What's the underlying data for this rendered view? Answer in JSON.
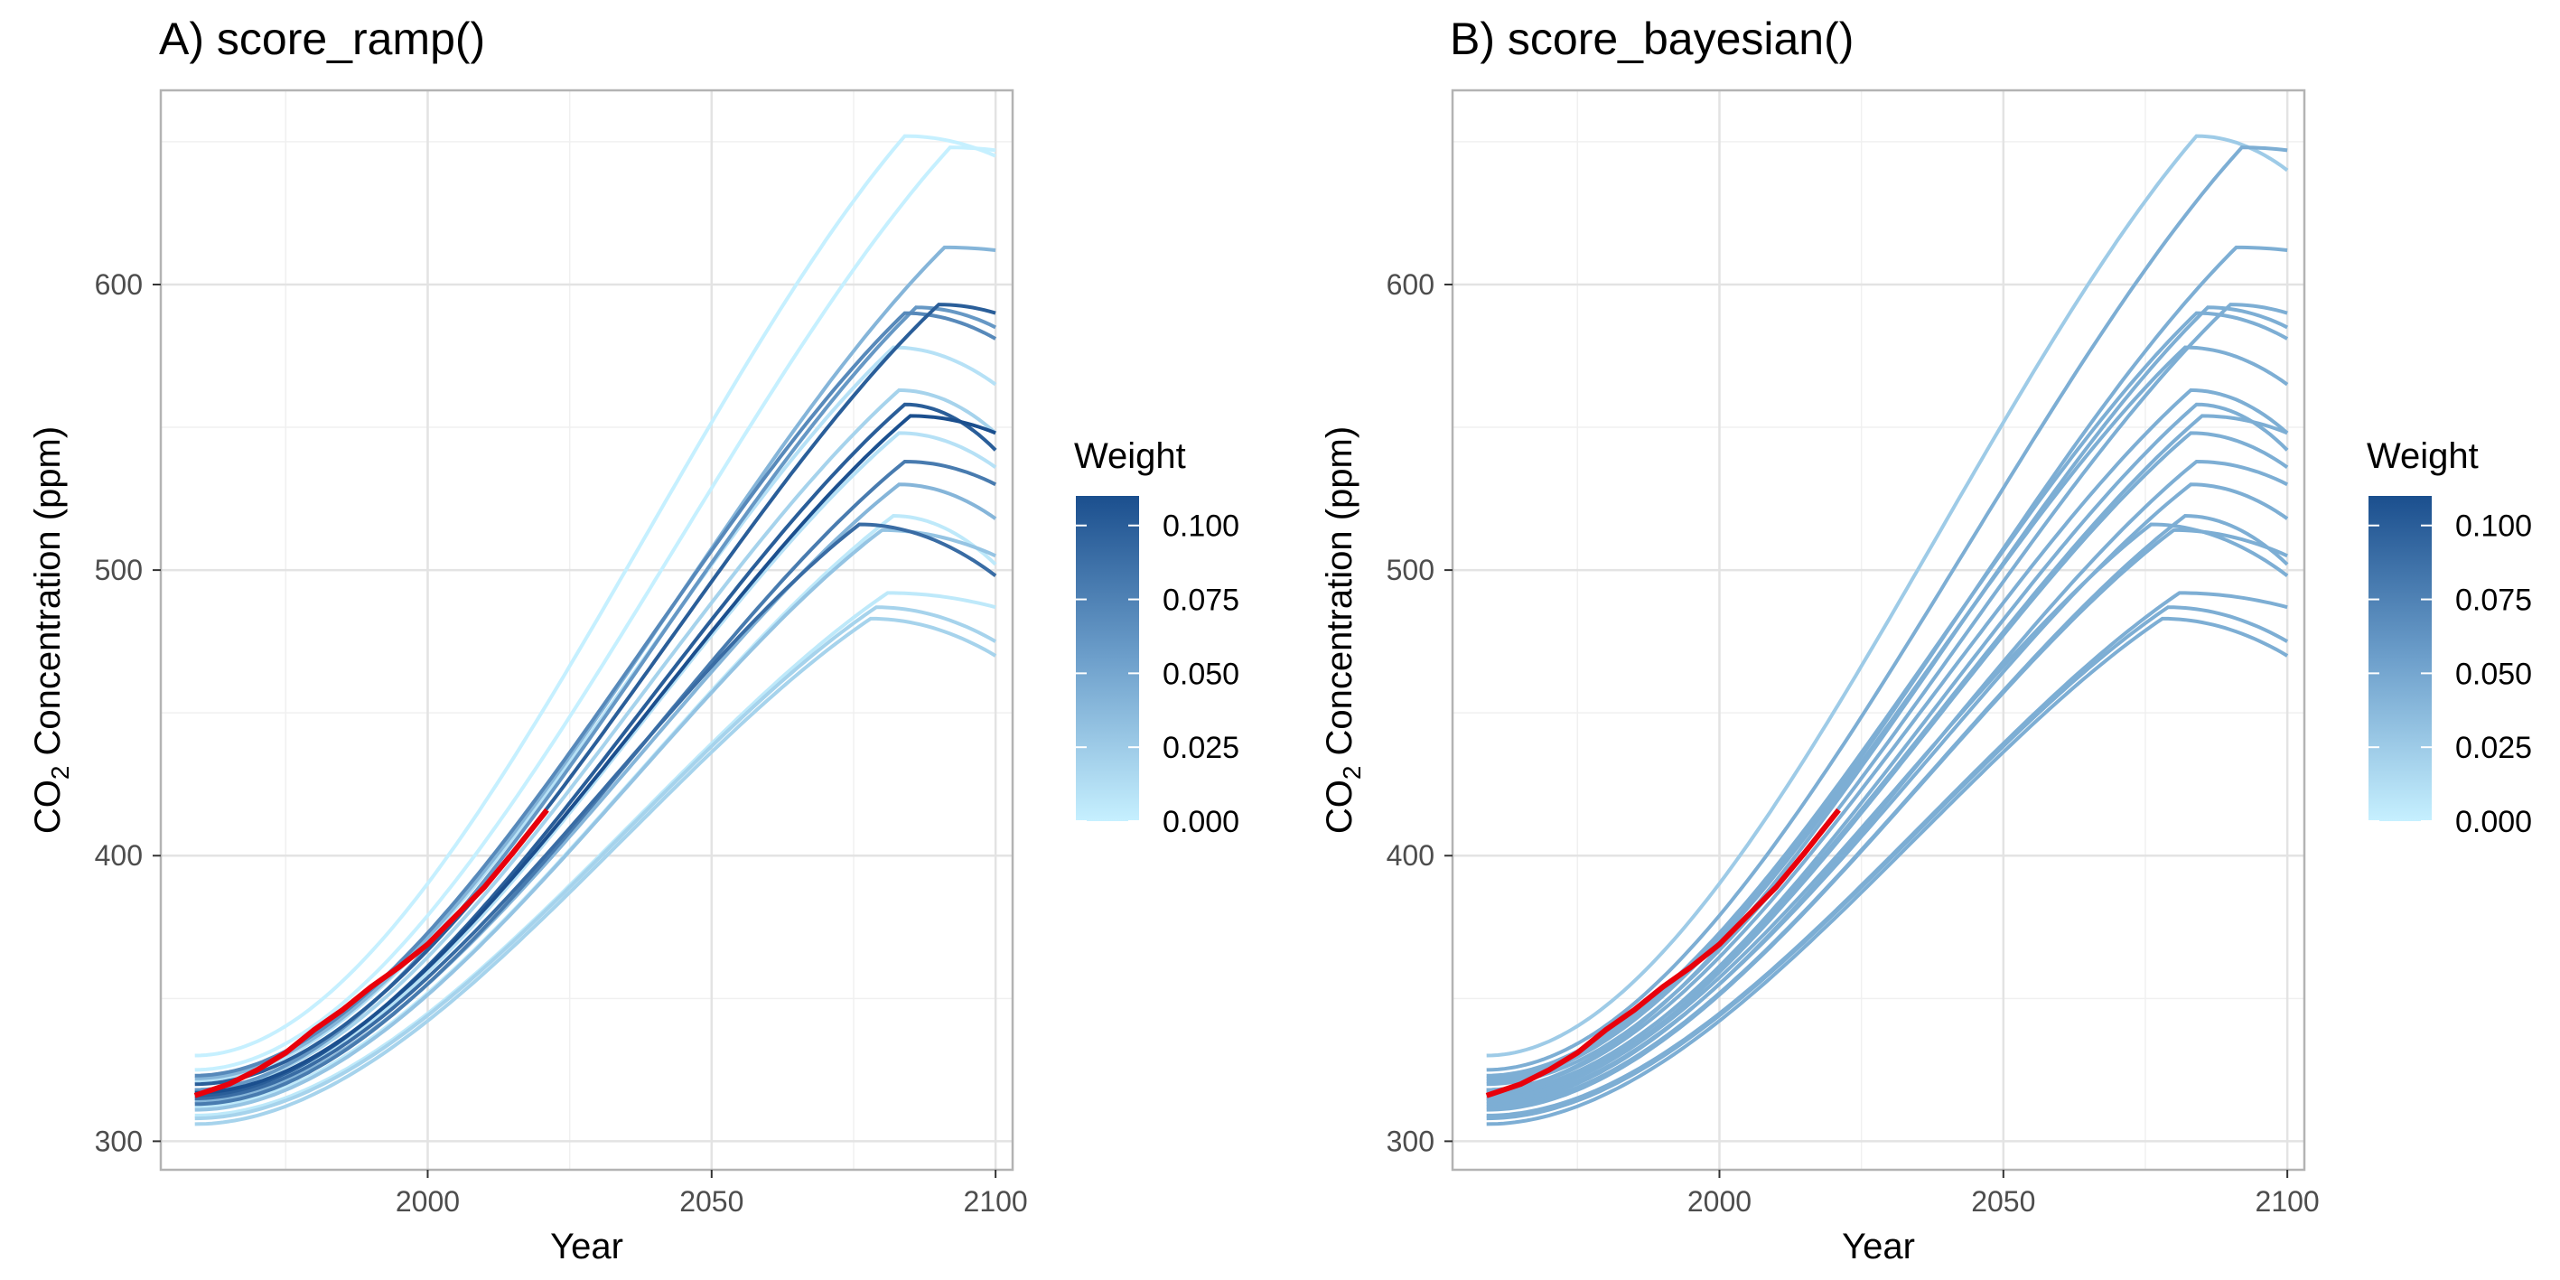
{
  "chart_data": [
    {
      "type": "line",
      "title": "A) score_ramp()",
      "xlabel": "Year",
      "ylabel": "CO2 Concentration (ppm)",
      "ylabel_parts": {
        "pre": "CO",
        "sub": "2",
        "post": " Concentration (ppm)"
      },
      "xlim": [
        1953,
        2103
      ],
      "ylim": [
        290,
        668
      ],
      "x_ticks": [
        2000,
        2050,
        2100
      ],
      "y_ticks": [
        300,
        400,
        500,
        600
      ],
      "grid": true,
      "legend": {
        "title": "Weight",
        "placement": "right",
        "min": 0,
        "max": 0.11,
        "ticks": [
          "0.100",
          "0.075",
          "0.050",
          "0.025",
          "0.000"
        ],
        "tick_values": [
          0.1,
          0.075,
          0.05,
          0.025,
          0.0
        ],
        "color_low": "#c6f0ff",
        "color_high": "#1b4f8e"
      },
      "series": [
        {
          "start": 330,
          "peak_year": 2084,
          "peak": 652,
          "end": 645,
          "weight": 0.0
        },
        {
          "start": 325,
          "peak_year": 2092,
          "peak": 648,
          "end": 647,
          "weight": 0.0
        },
        {
          "start": 322,
          "peak_year": 2091,
          "peak": 613,
          "end": 612,
          "weight": 0.04
        },
        {
          "start": 320,
          "peak_year": 2090,
          "peak": 593,
          "end": 590,
          "weight": 0.1
        },
        {
          "start": 318,
          "peak_year": 2086,
          "peak": 592,
          "end": 585,
          "weight": 0.06
        },
        {
          "start": 323,
          "peak_year": 2084,
          "peak": 590,
          "end": 581,
          "weight": 0.07
        },
        {
          "start": 321,
          "peak_year": 2082,
          "peak": 578,
          "end": 565,
          "weight": 0.01
        },
        {
          "start": 318,
          "peak_year": 2083,
          "peak": 563,
          "end": 548,
          "weight": 0.02
        },
        {
          "start": 316,
          "peak_year": 2084,
          "peak": 558,
          "end": 542,
          "weight": 0.1
        },
        {
          "start": 317,
          "peak_year": 2085,
          "peak": 554,
          "end": 548,
          "weight": 0.11
        },
        {
          "start": 315,
          "peak_year": 2083,
          "peak": 548,
          "end": 536,
          "weight": 0.01
        },
        {
          "start": 313,
          "peak_year": 2084,
          "peak": 538,
          "end": 530,
          "weight": 0.08
        },
        {
          "start": 314,
          "peak_year": 2083,
          "peak": 530,
          "end": 518,
          "weight": 0.04
        },
        {
          "start": 312,
          "peak_year": 2082,
          "peak": 519,
          "end": 502,
          "weight": 0.005
        },
        {
          "start": 315,
          "peak_year": 2076,
          "peak": 516,
          "end": 498,
          "weight": 0.09
        },
        {
          "start": 311,
          "peak_year": 2080,
          "peak": 514,
          "end": 505,
          "weight": 0.03
        },
        {
          "start": 309,
          "peak_year": 2081,
          "peak": 492,
          "end": 487,
          "weight": 0.005
        },
        {
          "start": 308,
          "peak_year": 2079,
          "peak": 487,
          "end": 475,
          "weight": 0.02
        },
        {
          "start": 306,
          "peak_year": 2078,
          "peak": 483,
          "end": 470,
          "weight": 0.02
        }
      ],
      "observed": {
        "color": "#e8000b",
        "x": [
          1959,
          1965,
          1970,
          1975,
          1980,
          1985,
          1990,
          1995,
          2000,
          2005,
          2010,
          2015,
          2021
        ],
        "values": [
          316,
          320,
          325,
          331,
          339,
          346,
          354,
          361,
          369,
          379,
          389,
          401,
          416
        ]
      }
    },
    {
      "type": "line",
      "title": "B) score_bayesian()",
      "xlabel": "Year",
      "ylabel": "CO2 Concentration (ppm)",
      "ylabel_parts": {
        "pre": "CO",
        "sub": "2",
        "post": " Concentration (ppm)"
      },
      "xlim": [
        1953,
        2103
      ],
      "ylim": [
        290,
        668
      ],
      "x_ticks": [
        2000,
        2050,
        2100
      ],
      "y_ticks": [
        300,
        400,
        500,
        600
      ],
      "grid": true,
      "legend": {
        "title": "Weight",
        "placement": "right",
        "min": 0,
        "max": 0.11,
        "ticks": [
          "0.100",
          "0.075",
          "0.050",
          "0.025",
          "0.000"
        ],
        "tick_values": [
          0.1,
          0.075,
          0.05,
          0.025,
          0.0
        ],
        "color_low": "#c6f0ff",
        "color_high": "#1b4f8e"
      },
      "series": [
        {
          "start": 330,
          "peak_year": 2084,
          "peak": 652,
          "end": 640,
          "weight": 0.025
        },
        {
          "start": 325,
          "peak_year": 2092,
          "peak": 648,
          "end": 647,
          "weight": 0.045
        },
        {
          "start": 322,
          "peak_year": 2091,
          "peak": 613,
          "end": 612,
          "weight": 0.045
        },
        {
          "start": 320,
          "peak_year": 2090,
          "peak": 593,
          "end": 590,
          "weight": 0.045
        },
        {
          "start": 318,
          "peak_year": 2086,
          "peak": 592,
          "end": 585,
          "weight": 0.045
        },
        {
          "start": 323,
          "peak_year": 2084,
          "peak": 590,
          "end": 581,
          "weight": 0.045
        },
        {
          "start": 321,
          "peak_year": 2082,
          "peak": 578,
          "end": 565,
          "weight": 0.045
        },
        {
          "start": 318,
          "peak_year": 2083,
          "peak": 563,
          "end": 548,
          "weight": 0.045
        },
        {
          "start": 316,
          "peak_year": 2084,
          "peak": 558,
          "end": 542,
          "weight": 0.045
        },
        {
          "start": 317,
          "peak_year": 2085,
          "peak": 554,
          "end": 548,
          "weight": 0.045
        },
        {
          "start": 315,
          "peak_year": 2083,
          "peak": 548,
          "end": 536,
          "weight": 0.045
        },
        {
          "start": 313,
          "peak_year": 2084,
          "peak": 538,
          "end": 530,
          "weight": 0.045
        },
        {
          "start": 314,
          "peak_year": 2083,
          "peak": 530,
          "end": 518,
          "weight": 0.045
        },
        {
          "start": 312,
          "peak_year": 2082,
          "peak": 519,
          "end": 502,
          "weight": 0.045
        },
        {
          "start": 315,
          "peak_year": 2076,
          "peak": 516,
          "end": 498,
          "weight": 0.045
        },
        {
          "start": 311,
          "peak_year": 2080,
          "peak": 514,
          "end": 505,
          "weight": 0.045
        },
        {
          "start": 309,
          "peak_year": 2081,
          "peak": 492,
          "end": 487,
          "weight": 0.045
        },
        {
          "start": 308,
          "peak_year": 2079,
          "peak": 487,
          "end": 475,
          "weight": 0.045
        },
        {
          "start": 306,
          "peak_year": 2078,
          "peak": 483,
          "end": 470,
          "weight": 0.045
        }
      ],
      "observed": {
        "color": "#e8000b",
        "x": [
          1959,
          1965,
          1970,
          1975,
          1980,
          1985,
          1990,
          1995,
          2000,
          2005,
          2010,
          2015,
          2021
        ],
        "values": [
          316,
          320,
          325,
          331,
          339,
          346,
          354,
          361,
          369,
          379,
          389,
          401,
          416
        ]
      }
    }
  ]
}
